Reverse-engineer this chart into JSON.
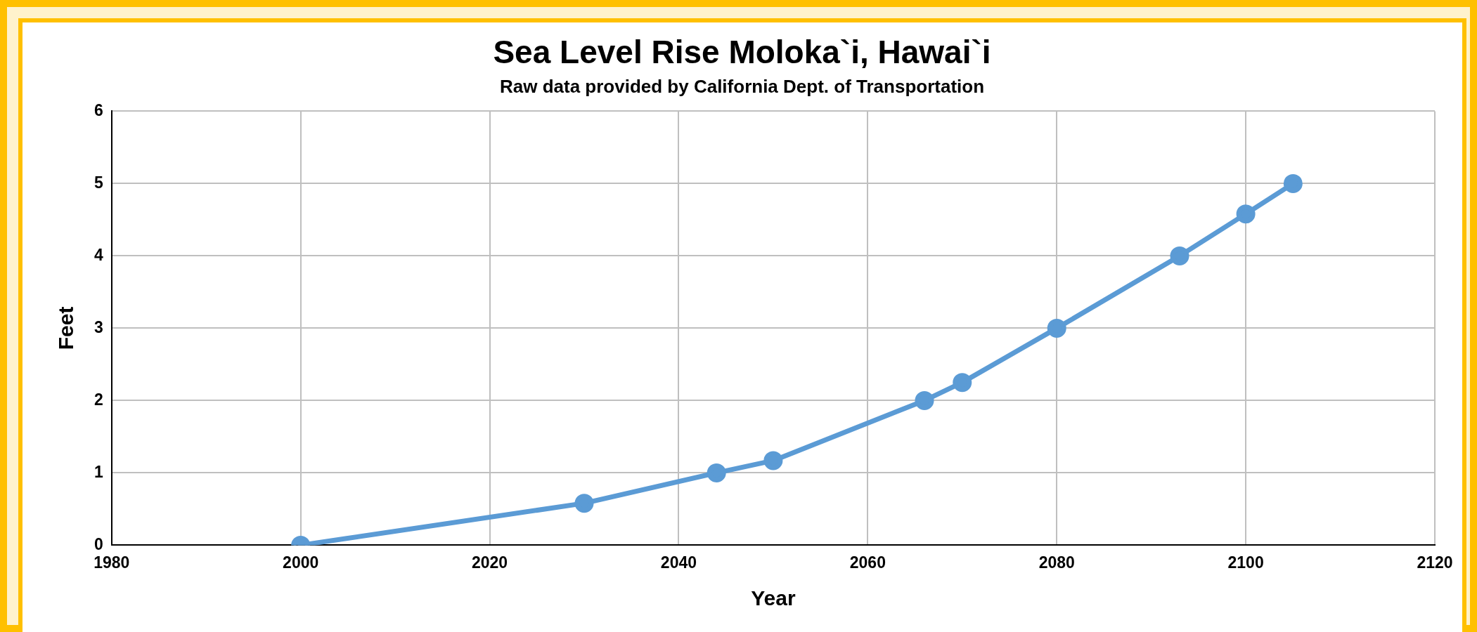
{
  "chart_data": {
    "type": "line",
    "title": "Sea Level Rise Moloka`i, Hawai`i",
    "subtitle": "Raw data provided by California Dept. of Transportation",
    "xlabel": "Year",
    "ylabel": "Feet",
    "x": [
      2000,
      2030,
      2044,
      2050,
      2066,
      2070,
      2080,
      2093,
      2100,
      2105
    ],
    "series": [
      {
        "color": "#5b9bd5",
        "values": [
          0,
          0.58,
          1,
          1.17,
          2,
          2.25,
          3,
          4,
          4.58,
          5
        ]
      }
    ],
    "xlim": [
      1980,
      2120
    ],
    "xticks": [
      1980,
      2000,
      2020,
      2040,
      2060,
      2080,
      2100,
      2120
    ],
    "ylim": [
      0,
      6
    ],
    "yticks": [
      0,
      1,
      2,
      3,
      4,
      5,
      6
    ],
    "grid": true,
    "marker": "circle",
    "line_style": "solid",
    "legend": false
  }
}
